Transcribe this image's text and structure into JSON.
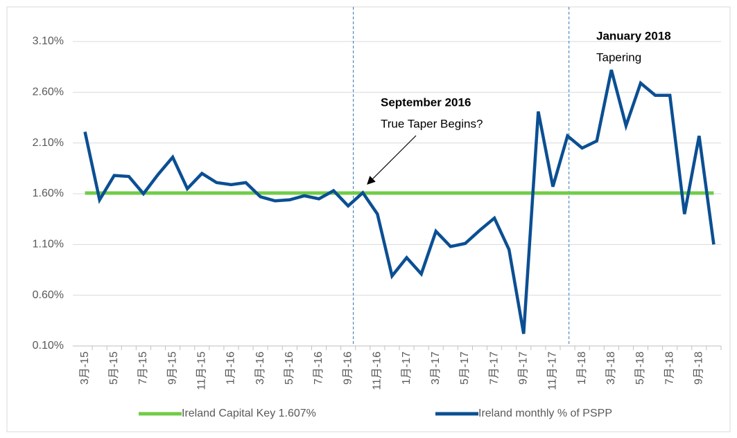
{
  "chart_data": {
    "type": "line",
    "categories": [
      "3月-15",
      null,
      "5月-15",
      null,
      "7月-15",
      null,
      "9月-15",
      null,
      "11月-15",
      null,
      "1月-16",
      null,
      "3月-16",
      null,
      "5月-16",
      null,
      "7月-16",
      null,
      "9月-16",
      null,
      "11月-16",
      null,
      "1月-17",
      null,
      "3月-17",
      null,
      "5月-17",
      null,
      "7月-17",
      null,
      "9月-17",
      null,
      "11月-17",
      null,
      "1月-18",
      null,
      "3月-18",
      null,
      "5月-18",
      null,
      "7月-18",
      null,
      "9月-18",
      null
    ],
    "series": [
      {
        "name": "Ireland Capital Key 1.607%",
        "color": "#70cc47",
        "values": [
          1.607,
          1.607,
          1.607,
          1.607,
          1.607,
          1.607,
          1.607,
          1.607,
          1.607,
          1.607,
          1.607,
          1.607,
          1.607,
          1.607,
          1.607,
          1.607,
          1.607,
          1.607,
          1.607,
          1.607,
          1.607,
          1.607,
          1.607,
          1.607,
          1.607,
          1.607,
          1.607,
          1.607,
          1.607,
          1.607,
          1.607,
          1.607,
          1.607,
          1.607,
          1.607,
          1.607,
          1.607,
          1.607,
          1.607,
          1.607,
          1.607,
          1.607,
          1.607,
          1.607
        ]
      },
      {
        "name": "Ireland monthly % of PSPP",
        "color": "#0b4f93",
        "values": [
          2.21,
          1.54,
          1.78,
          1.77,
          1.6,
          1.79,
          1.96,
          1.65,
          1.8,
          1.71,
          1.69,
          1.71,
          1.57,
          1.53,
          1.54,
          1.58,
          1.55,
          1.63,
          1.48,
          1.61,
          1.4,
          0.79,
          0.97,
          0.81,
          1.23,
          1.08,
          1.11,
          1.24,
          1.36,
          1.05,
          0.22,
          2.41,
          1.67,
          2.17,
          2.05,
          2.12,
          2.82,
          2.27,
          2.69,
          2.57,
          2.57,
          1.4,
          2.17,
          1.1
        ]
      }
    ],
    "ylim": [
      0.1,
      3.1
    ],
    "yticks": [
      {
        "value": 0.1,
        "label": "0.10%"
      },
      {
        "value": 0.6,
        "label": "0.60%"
      },
      {
        "value": 1.1,
        "label": "1.10%"
      },
      {
        "value": 1.6,
        "label": "1.60%"
      },
      {
        "value": 2.1,
        "label": "2.10%"
      },
      {
        "value": 2.6,
        "label": "2.60%"
      },
      {
        "value": 3.1,
        "label": "3.10%"
      }
    ],
    "grid": true,
    "legend": "bottom",
    "annotations": [
      {
        "title": "September 2016",
        "text": "True Taper Begins?"
      },
      {
        "title": "January 2018",
        "text": "Tapering"
      }
    ]
  }
}
